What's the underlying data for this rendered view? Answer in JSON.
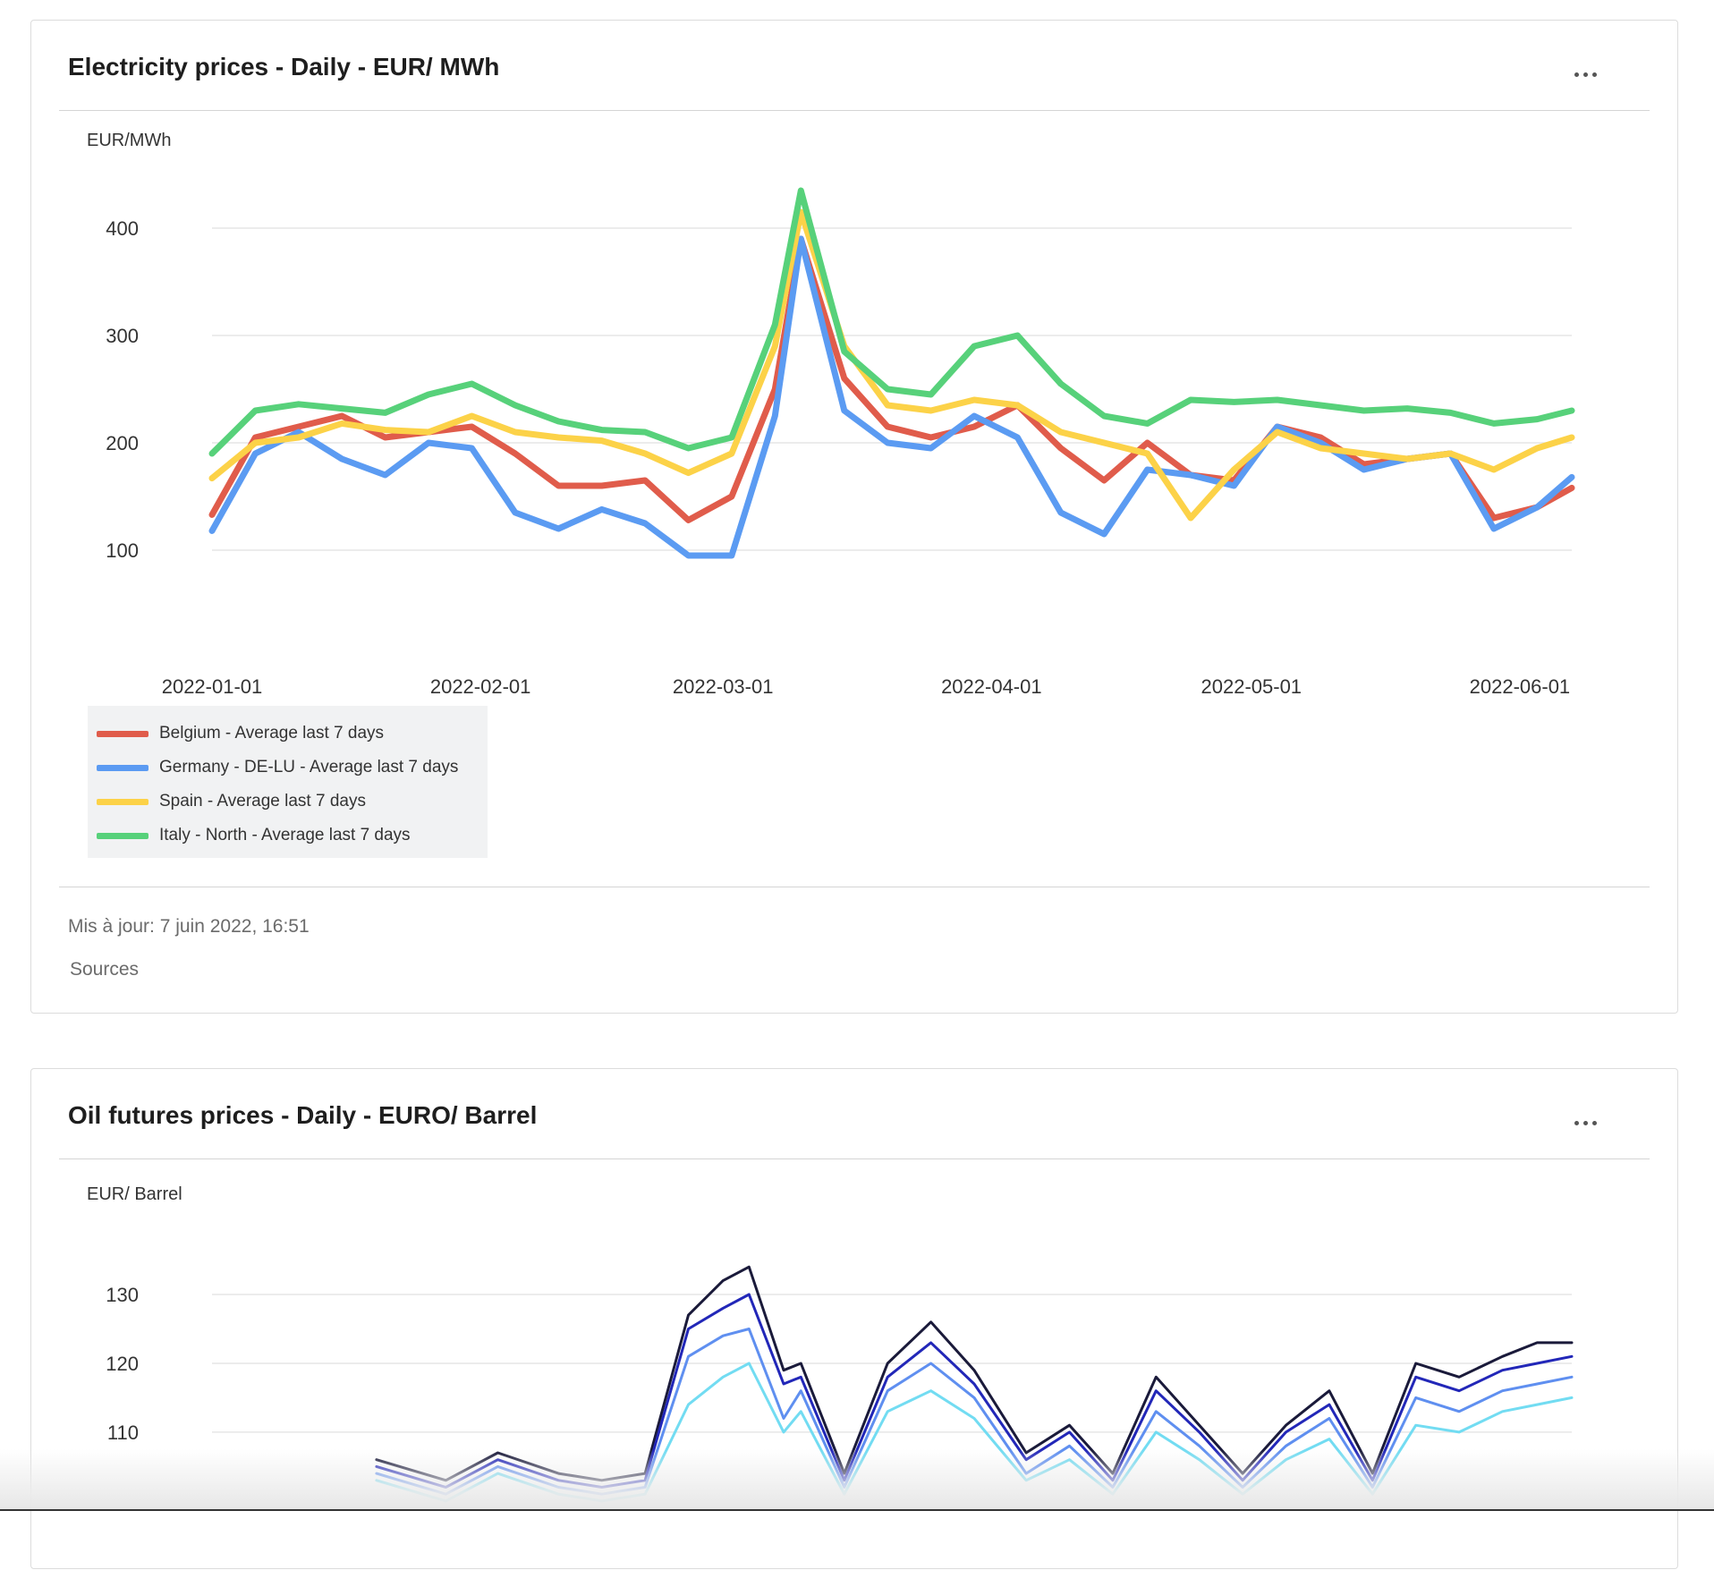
{
  "chart1": {
    "title": "Electricity prices - Daily - EUR/ MWh",
    "updated": "Mis à jour: 7 juin 2022, 16:51",
    "sources_label": "Sources",
    "chart_data": {
      "type": "line",
      "ylabel": "EUR/MWh",
      "ylim": [
        50,
        450
      ],
      "yticks": [
        100,
        200,
        300,
        400
      ],
      "x_range": [
        "2022-01-01",
        "2022-06-07"
      ],
      "xticks": [
        "2022-01-01",
        "2022-02-01",
        "2022-03-01",
        "2022-04-01",
        "2022-05-01",
        "2022-06-01"
      ],
      "legend_position": "bottom-left",
      "grid": true,
      "x": [
        "2022-01-01",
        "2022-01-06",
        "2022-01-11",
        "2022-01-16",
        "2022-01-21",
        "2022-01-26",
        "2022-01-31",
        "2022-02-05",
        "2022-02-10",
        "2022-02-15",
        "2022-02-20",
        "2022-02-25",
        "2022-03-02",
        "2022-03-07",
        "2022-03-10",
        "2022-03-15",
        "2022-03-20",
        "2022-03-25",
        "2022-03-30",
        "2022-04-04",
        "2022-04-09",
        "2022-04-14",
        "2022-04-19",
        "2022-04-24",
        "2022-04-29",
        "2022-05-04",
        "2022-05-09",
        "2022-05-14",
        "2022-05-19",
        "2022-05-24",
        "2022-05-29",
        "2022-06-03",
        "2022-06-07"
      ],
      "series": [
        {
          "name": "Belgium - Average last 7 days",
          "color": "#e05c4b",
          "values": [
            133,
            205,
            215,
            225,
            205,
            210,
            215,
            190,
            160,
            160,
            165,
            128,
            150,
            250,
            390,
            260,
            215,
            205,
            215,
            235,
            195,
            165,
            200,
            170,
            165,
            215,
            205,
            180,
            185,
            190,
            130,
            140,
            158
          ]
        },
        {
          "name": "Germany - DE-LU - Average last 7 days",
          "color": "#5b9bf2",
          "values": [
            118,
            190,
            210,
            185,
            170,
            200,
            195,
            135,
            120,
            138,
            125,
            95,
            95,
            225,
            390,
            230,
            200,
            195,
            225,
            205,
            135,
            115,
            175,
            170,
            160,
            215,
            200,
            175,
            185,
            190,
            120,
            140,
            168
          ]
        },
        {
          "name": "Spain - Average last 7 days",
          "color": "#fcd248",
          "values": [
            167,
            200,
            205,
            218,
            212,
            210,
            225,
            210,
            205,
            202,
            190,
            172,
            190,
            290,
            415,
            290,
            235,
            230,
            240,
            235,
            210,
            200,
            190,
            130,
            175,
            210,
            195,
            190,
            185,
            190,
            175,
            195,
            205
          ]
        },
        {
          "name": "Italy - North - Average last 7 days",
          "color": "#57d17a",
          "values": [
            190,
            230,
            236,
            232,
            228,
            245,
            255,
            235,
            220,
            212,
            210,
            195,
            205,
            310,
            435,
            285,
            250,
            245,
            290,
            300,
            255,
            225,
            218,
            240,
            238,
            240,
            235,
            230,
            232,
            228,
            218,
            222,
            230
          ]
        }
      ]
    }
  },
  "chart2": {
    "title": "Oil futures prices - Daily - EURO/ Barrel",
    "chart_data": {
      "type": "line",
      "ylabel": "EUR/ Barrel",
      "ylim": [
        97,
        140
      ],
      "yticks": [
        110,
        120,
        130
      ],
      "x_range": [
        "2022-01-01",
        "2022-06-07"
      ],
      "grid": true,
      "x": [
        "2022-01-01",
        "2022-01-10",
        "2022-01-20",
        "2022-01-28",
        "2022-02-03",
        "2022-02-10",
        "2022-02-15",
        "2022-02-20",
        "2022-02-25",
        "2022-03-01",
        "2022-03-04",
        "2022-03-08",
        "2022-03-10",
        "2022-03-15",
        "2022-03-20",
        "2022-03-25",
        "2022-03-30",
        "2022-04-05",
        "2022-04-10",
        "2022-04-15",
        "2022-04-20",
        "2022-04-25",
        "2022-04-30",
        "2022-05-05",
        "2022-05-10",
        "2022-05-15",
        "2022-05-20",
        "2022-05-25",
        "2022-05-30",
        "2022-06-03",
        "2022-06-07"
      ],
      "series": [
        {
          "name": "",
          "color": "#1a1a3a",
          "values": [
            null,
            null,
            106,
            103,
            107,
            104,
            103,
            104,
            127,
            132,
            134,
            119,
            120,
            104,
            120,
            126,
            119,
            107,
            111,
            104,
            118,
            111,
            104,
            111,
            116,
            104,
            120,
            118,
            121,
            123,
            123
          ]
        },
        {
          "name": "",
          "color": "#2227b8",
          "values": [
            null,
            null,
            105,
            102,
            106,
            103,
            102,
            103,
            125,
            128,
            130,
            117,
            118,
            103,
            118,
            123,
            117,
            106,
            110,
            103,
            116,
            110,
            103,
            110,
            114,
            103,
            118,
            116,
            119,
            120,
            121
          ]
        },
        {
          "name": "",
          "color": "#5f8ff0",
          "values": [
            null,
            null,
            104,
            101,
            105,
            102,
            101,
            102,
            121,
            124,
            125,
            112,
            116,
            102,
            116,
            120,
            115,
            104,
            108,
            102,
            113,
            108,
            102,
            108,
            112,
            102,
            115,
            113,
            116,
            117,
            118
          ]
        },
        {
          "name": "",
          "color": "#72dcf2",
          "values": [
            null,
            null,
            103,
            100,
            104,
            101,
            100,
            101,
            114,
            118,
            120,
            110,
            113,
            101,
            113,
            116,
            112,
            103,
            106,
            101,
            110,
            106,
            101,
            106,
            109,
            101,
            111,
            110,
            113,
            114,
            115
          ]
        }
      ]
    }
  }
}
